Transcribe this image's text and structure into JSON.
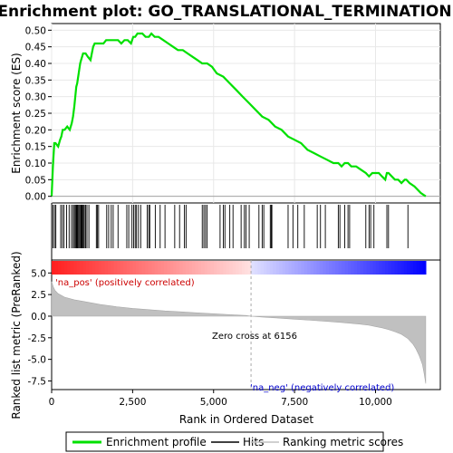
{
  "chart_data": {
    "type": "line",
    "title": "Enrichment plot: GO_TRANSLATIONAL_TERMINATION",
    "xlabel": "Rank in Ordered Dataset",
    "ylabel_top": "Enrichment score (ES)",
    "ylabel_bottom": "Ranked list metric (PreRanked)",
    "x_range": [
      0,
      12000
    ],
    "x_ticks": [
      0,
      2500,
      5000,
      7500,
      10000
    ],
    "x_tick_labels": [
      "0",
      "2,500",
      "5,000",
      "7,500",
      "10,000"
    ],
    "es_ylim": [
      -0.02,
      0.52
    ],
    "es_ticks": [
      0.0,
      0.05,
      0.1,
      0.15,
      0.2,
      0.25,
      0.3,
      0.35,
      0.4,
      0.45,
      0.5
    ],
    "es_tick_labels": [
      "0.00",
      "0.05",
      "0.10",
      "0.15",
      "0.20",
      "0.25",
      "0.30",
      "0.35",
      "0.40",
      "0.45",
      "0.50"
    ],
    "metric_ylim": [
      -8.5,
      6.5
    ],
    "metric_ticks": [
      -7.5,
      -5.0,
      -2.5,
      0.0,
      2.5,
      5.0
    ],
    "metric_tick_labels": [
      "-7.5",
      "-5.0",
      "-2.5",
      "0.0",
      "2.5",
      "5.0"
    ],
    "zero_cross_rank": 6156,
    "zero_cross_label": "Zero cross at 6156",
    "pos_label": "'na_pos' (positively correlated)",
    "neg_label": "'na_neg' (negatively correlated)",
    "series": [
      {
        "name": "Enrichment profile",
        "color": "#00e000",
        "x": [
          0,
          40,
          80,
          120,
          200,
          260,
          300,
          340,
          400,
          480,
          560,
          620,
          660,
          700,
          730,
          760,
          790,
          820,
          850,
          880,
          910,
          940,
          970,
          1000,
          1050,
          1120,
          1200,
          1280,
          1330,
          1380,
          1420,
          1500,
          1600,
          1680,
          1760,
          1840,
          1950,
          2050,
          2150,
          2250,
          2350,
          2450,
          2520,
          2580,
          2650,
          2720,
          2800,
          2900,
          3000,
          3080,
          3180,
          3300,
          3450,
          3600,
          3750,
          3900,
          4050,
          4200,
          4350,
          4500,
          4650,
          4800,
          4950,
          5100,
          5300,
          5500,
          5700,
          5900,
          6100,
          6300,
          6500,
          6700,
          6900,
          7100,
          7300,
          7500,
          7700,
          7900,
          8100,
          8300,
          8500,
          8700,
          8850,
          8950,
          9050,
          9150,
          9250,
          9400,
          9550,
          9700,
          9800,
          9900,
          10000,
          10100,
          10200,
          10300,
          10350,
          10400,
          10500,
          10600,
          10700,
          10800,
          10900,
          10950,
          11050,
          11200,
          11400,
          11550
        ],
        "y": [
          0.0,
          0.09,
          0.16,
          0.16,
          0.15,
          0.17,
          0.18,
          0.2,
          0.2,
          0.21,
          0.2,
          0.22,
          0.24,
          0.27,
          0.3,
          0.33,
          0.34,
          0.36,
          0.38,
          0.4,
          0.41,
          0.42,
          0.43,
          0.43,
          0.43,
          0.42,
          0.41,
          0.45,
          0.46,
          0.46,
          0.46,
          0.46,
          0.46,
          0.47,
          0.47,
          0.47,
          0.47,
          0.47,
          0.46,
          0.47,
          0.47,
          0.46,
          0.48,
          0.48,
          0.49,
          0.49,
          0.49,
          0.48,
          0.48,
          0.49,
          0.48,
          0.48,
          0.47,
          0.46,
          0.45,
          0.44,
          0.44,
          0.43,
          0.42,
          0.41,
          0.4,
          0.4,
          0.39,
          0.37,
          0.36,
          0.34,
          0.32,
          0.3,
          0.28,
          0.26,
          0.24,
          0.23,
          0.21,
          0.2,
          0.18,
          0.17,
          0.16,
          0.14,
          0.13,
          0.12,
          0.11,
          0.1,
          0.1,
          0.09,
          0.1,
          0.1,
          0.09,
          0.09,
          0.08,
          0.07,
          0.06,
          0.07,
          0.07,
          0.07,
          0.06,
          0.05,
          0.07,
          0.07,
          0.06,
          0.05,
          0.05,
          0.04,
          0.05,
          0.05,
          0.04,
          0.03,
          0.01,
          0.0
        ]
      },
      {
        "name": "Ranking metric scores",
        "color": "#c0c0c0",
        "x": [
          0,
          50,
          100,
          200,
          400,
          700,
          1000,
          1500,
          2000,
          2500,
          3000,
          3500,
          4000,
          4500,
          5000,
          5500,
          6000,
          6156,
          6500,
          7000,
          7500,
          8000,
          8500,
          9000,
          9500,
          9800,
          10000,
          10200,
          10400,
          10600,
          10800,
          11000,
          11150,
          11250,
          11350,
          11450,
          11500,
          11550
        ],
        "y": [
          4.0,
          3.4,
          3.0,
          2.6,
          2.2,
          1.9,
          1.7,
          1.35,
          1.1,
          0.9,
          0.75,
          0.6,
          0.5,
          0.38,
          0.28,
          0.18,
          0.08,
          0.0,
          -0.1,
          -0.22,
          -0.35,
          -0.48,
          -0.6,
          -0.75,
          -0.92,
          -1.05,
          -1.2,
          -1.35,
          -1.55,
          -1.8,
          -2.1,
          -2.6,
          -3.2,
          -3.8,
          -4.6,
          -5.6,
          -6.6,
          -7.8
        ]
      }
    ],
    "hits": [
      40,
      90,
      130,
      280,
      330,
      380,
      460,
      540,
      610,
      660,
      700,
      730,
      760,
      780,
      800,
      830,
      860,
      890,
      910,
      930,
      950,
      980,
      1010,
      1050,
      1090,
      1150,
      1380,
      1410,
      1450,
      1700,
      1760,
      1840,
      1900,
      2050,
      2320,
      2380,
      2480,
      2530,
      2580,
      2620,
      2680,
      2750,
      2950,
      3000,
      3030,
      3200,
      3350,
      3500,
      3800,
      3950,
      4100,
      4150,
      4650,
      4700,
      4750,
      4800,
      5200,
      5300,
      5350,
      5500,
      5600,
      5850,
      5950,
      6000,
      6100,
      6400,
      6500,
      6550,
      6750,
      6780,
      6800,
      7300,
      7450,
      7600,
      7800,
      8200,
      8300,
      8450,
      8850,
      8900,
      9050,
      9150,
      9200,
      9700,
      9800,
      9850,
      9950,
      10350,
      10400,
      11000
    ],
    "legend": [
      {
        "label": "Enrichment profile",
        "color": "#00e000",
        "style": "line"
      },
      {
        "label": "Hits",
        "color": "#000000",
        "style": "line"
      },
      {
        "label": "Ranking metric scores",
        "color": "#c0c0c0",
        "style": "line"
      }
    ]
  }
}
